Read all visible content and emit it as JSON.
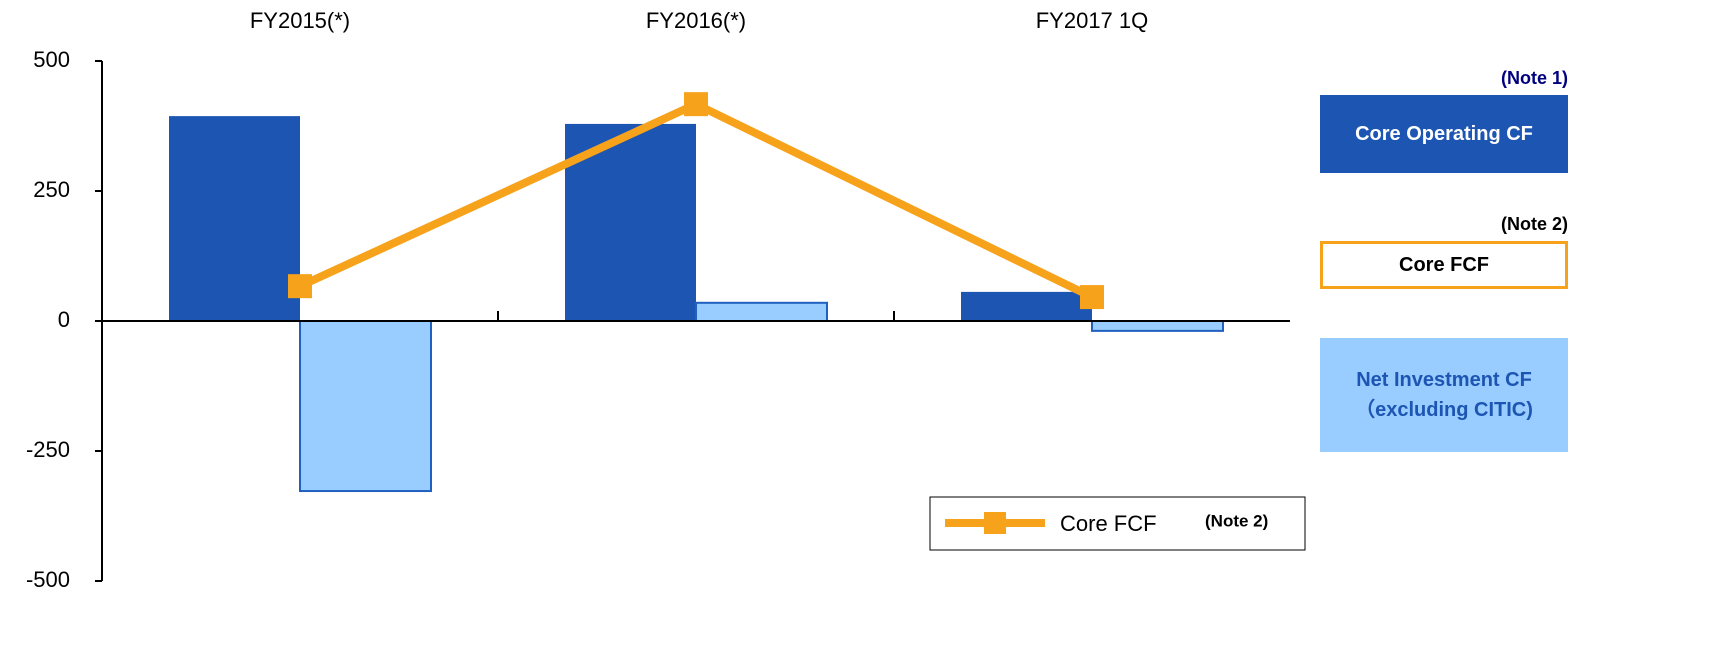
{
  "chart_data": {
    "type": "bar",
    "categories": [
      "FY2015(*)",
      "FY2016(*)",
      "FY2017 1Q"
    ],
    "series": [
      {
        "name": "Core Operating CF",
        "color": "#1d55b3",
        "values": [
          394,
          379,
          56
        ],
        "note": "(Note 1)"
      },
      {
        "name": "Core FCF",
        "color": "#f7a21b",
        "type": "line",
        "values": [
          67,
          417,
          46
        ],
        "note": "(Note 2)"
      },
      {
        "name": "Net Investment CF（excluding CITIC)",
        "color": "#99ccff",
        "values": [
          -327,
          35,
          -19
        ]
      }
    ],
    "ylim": [
      -500,
      500
    ],
    "yticks": [
      -500,
      -250,
      0,
      250,
      500
    ]
  }
}
